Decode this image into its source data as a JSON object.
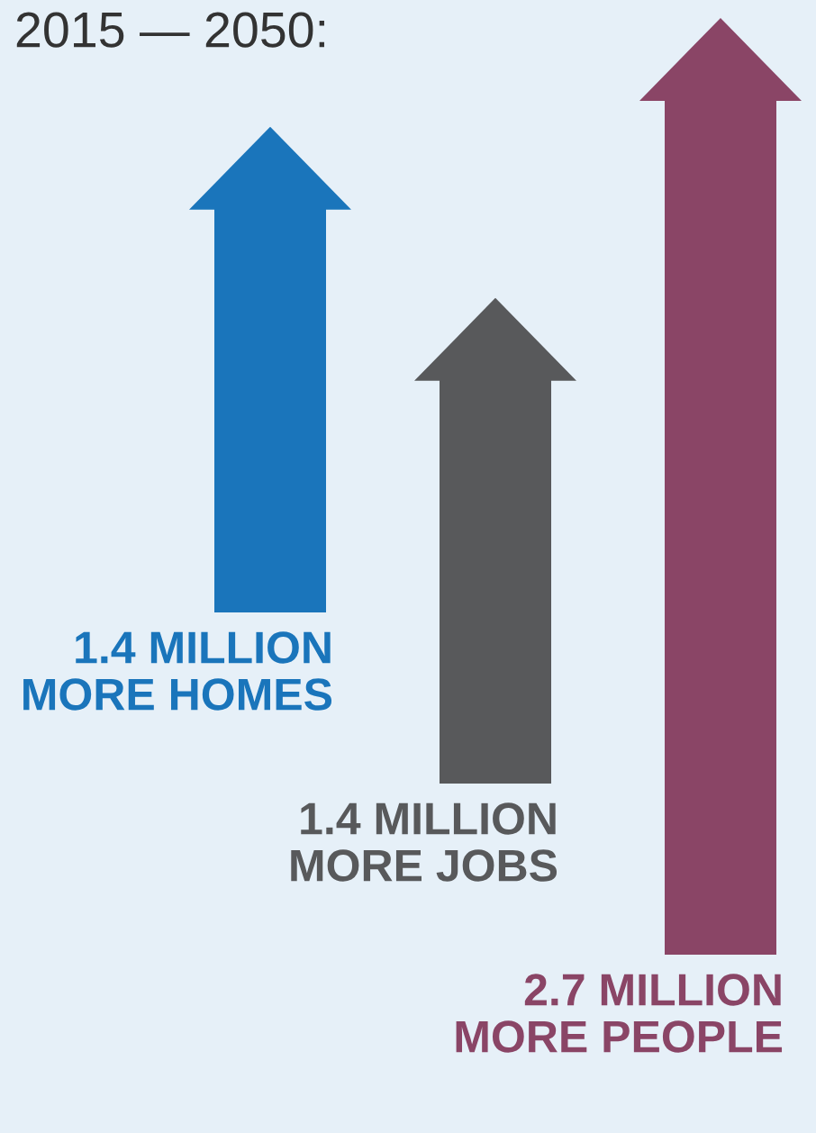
{
  "chart_data": {
    "type": "other",
    "title": "2015 — 2050:",
    "categories": [
      "MORE HOMES",
      "MORE JOBS",
      "MORE PEOPLE"
    ],
    "values": [
      1.4,
      1.4,
      2.7
    ],
    "value_labels": [
      "1.4 MILLION",
      "1.4 MILLION",
      "2.7 MILLION"
    ],
    "colors": [
      "#1a75bb",
      "#58595b",
      "#8a4566"
    ]
  }
}
